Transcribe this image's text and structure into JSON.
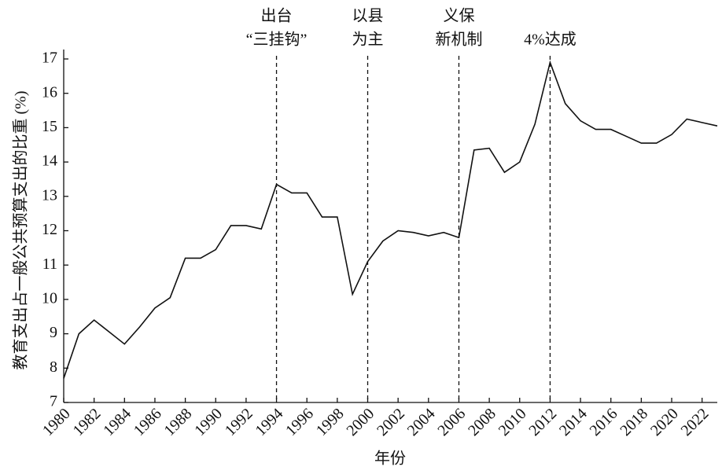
{
  "chart_data": {
    "type": "line",
    "x_label": "年份",
    "y_label": "教育支出占一般公共预算支出的比重 (%)",
    "x": [
      1980,
      1981,
      1982,
      1983,
      1984,
      1985,
      1986,
      1987,
      1988,
      1989,
      1990,
      1991,
      1992,
      1993,
      1994,
      1995,
      1996,
      1997,
      1998,
      1999,
      2000,
      2001,
      2002,
      2003,
      2004,
      2005,
      2006,
      2007,
      2008,
      2009,
      2010,
      2011,
      2012,
      2013,
      2014,
      2015,
      2016,
      2017,
      2018,
      2019,
      2020,
      2021,
      2022,
      2023
    ],
    "series": [
      {
        "color": "#111111",
        "values": [
          7.7,
          9.0,
          9.4,
          9.05,
          8.7,
          9.2,
          9.75,
          10.05,
          11.2,
          11.2,
          11.45,
          12.15,
          12.15,
          12.05,
          13.35,
          13.1,
          13.1,
          12.4,
          12.4,
          10.15,
          11.1,
          11.7,
          12.0,
          11.95,
          11.85,
          11.95,
          11.8,
          14.35,
          14.4,
          13.7,
          14.0,
          15.1,
          16.9,
          15.7,
          15.2,
          14.95,
          14.95,
          14.75,
          14.55,
          14.55,
          14.8,
          15.25,
          15.15,
          15.05
        ]
      }
    ],
    "xlim": [
      1980,
      2023
    ],
    "xticks": [
      1980,
      1982,
      1984,
      1986,
      1988,
      1990,
      1992,
      1994,
      1996,
      1998,
      2000,
      2002,
      2004,
      2006,
      2008,
      2010,
      2012,
      2014,
      2016,
      2018,
      2020,
      2022
    ],
    "ylim": [
      7,
      17
    ],
    "yticks": [
      7,
      8,
      9,
      10,
      11,
      12,
      13,
      14,
      15,
      16,
      17
    ],
    "grid": false,
    "annotations": [
      {
        "x": 1994,
        "lines": [
          "出台",
          "“三挂钩”"
        ]
      },
      {
        "x": 2000,
        "lines": [
          "以县",
          "为主"
        ]
      },
      {
        "x": 2006,
        "lines": [
          "义保",
          "新机制"
        ]
      },
      {
        "x": 2012,
        "lines": [
          "4%达成"
        ]
      }
    ]
  }
}
